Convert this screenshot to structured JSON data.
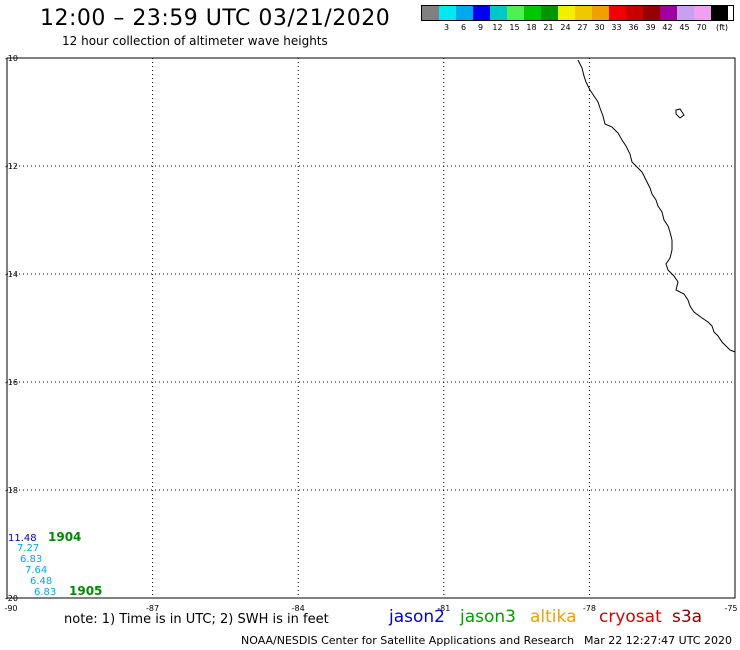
{
  "header": {
    "title": "12:00 – 23:59 UTC 03/21/2020",
    "subtitle": "12 hour collection of altimeter wave heights"
  },
  "legend": {
    "colors": [
      "#808080",
      "#00e8f0",
      "#00a8f0",
      "#0000f0",
      "#00c8c8",
      "#50f050",
      "#00c800",
      "#009600",
      "#f0f000",
      "#f0c800",
      "#f0a000",
      "#f00000",
      "#c80000",
      "#960000",
      "#a000a0",
      "#c8a0f0",
      "#f0a0f0",
      "#000000"
    ],
    "labels": [
      "",
      "3",
      "6",
      "9",
      "12",
      "15",
      "18",
      "21",
      "24",
      "27",
      "30",
      "33",
      "36",
      "39",
      "42",
      "45",
      "70",
      "(ft)"
    ]
  },
  "map": {
    "lat_labels": [
      "-10",
      "-12",
      "-14",
      "-16",
      "-18",
      "-20"
    ],
    "lon_labels": [
      "-90",
      "-87",
      "-84",
      "-81",
      "-78",
      "-75"
    ],
    "lat_range": [
      -20,
      -10
    ],
    "lon_range": [
      -90,
      -75
    ],
    "grid": "dotted",
    "wave_heights": [
      {
        "value": "11.48",
        "color": "#0000c8"
      },
      {
        "value": "7.27",
        "color": "#00a8f0"
      },
      {
        "value": "6.83",
        "color": "#00a8f0"
      },
      {
        "value": "7.64",
        "color": "#00a8f0"
      },
      {
        "value": "6.48",
        "color": "#00a8f0"
      },
      {
        "value": "6.83",
        "color": "#00a8f0"
      }
    ],
    "time_labels": [
      {
        "value": "1904",
        "color": "#008c00"
      },
      {
        "value": "1905",
        "color": "#008c00"
      }
    ]
  },
  "footer": {
    "note": "note: 1) Time is in UTC; 2) SWH is in feet",
    "satellites": [
      {
        "name": "jason2",
        "color": "#0000dc"
      },
      {
        "name": "jason3",
        "color": "#00a000"
      },
      {
        "name": "altika",
        "color": "#f0a000"
      },
      {
        "name": "cryosat",
        "color": "#dc0000"
      },
      {
        "name": "s3a",
        "color": "#8c0000"
      }
    ],
    "credit": "NOAA/NESDIS Center for Satellite Applications and Research",
    "timestamp": "Mar 22 12:27:47 UTC 2020"
  }
}
